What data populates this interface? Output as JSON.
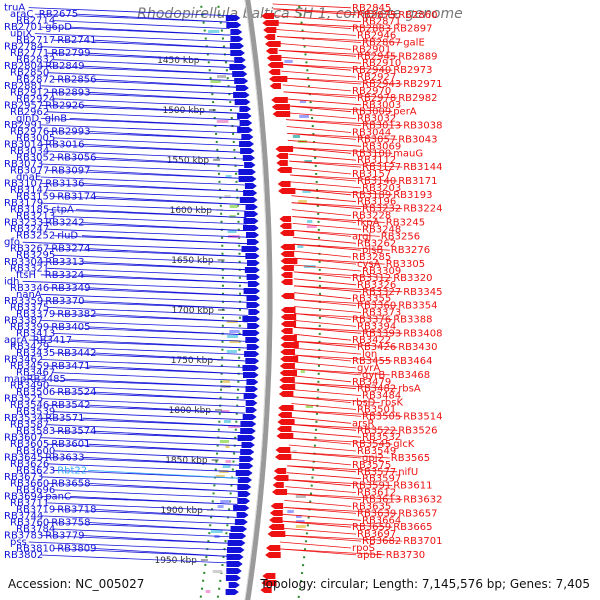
{
  "title": "Rhodopirellula baltica SH 1, complete genome",
  "footer": {
    "accession": "Accession: NC_005027",
    "summary": "Topology: circular; Length: 7,145,576 bp; Genes: 7,405"
  },
  "colors": {
    "forward_strand": "#1212d8",
    "reverse_strand": "#ee1111",
    "backbone": "#9a9a9a",
    "rna_label": "#33aaff",
    "tick": "#444444",
    "dots": "#2a8a2a"
  },
  "ruler_ticks": [
    "1450 kbp",
    "1500 kbp",
    "1550 kbp",
    "1600 kbp",
    "1650 kbp",
    "1700 kbp",
    "1750 kbp",
    "1800 kbp",
    "1850 kbp",
    "1900 kbp",
    "1950 kbp"
  ],
  "left_labels": [
    {
      "t": "truA"
    },
    {
      "t": "araC"
    },
    {
      "t": "RB2675"
    },
    {
      "t": "RB2714"
    },
    {
      "t": "RB2701"
    },
    {
      "t": "g6pD"
    },
    {
      "t": "ubiX"
    },
    {
      "t": "RB2717"
    },
    {
      "t": "RB2741"
    },
    {
      "t": "RB2784"
    },
    {
      "t": "RB2771"
    },
    {
      "t": "RB2799"
    },
    {
      "t": "RB2832"
    },
    {
      "t": "RB2804"
    },
    {
      "t": "RB2849"
    },
    {
      "t": "RB2850"
    },
    {
      "t": "RB2872"
    },
    {
      "t": "RB2856"
    },
    {
      "t": "RB2881"
    },
    {
      "t": "RB2912"
    },
    {
      "t": "RB2893"
    },
    {
      "t": "RB2924"
    },
    {
      "t": "RB2957"
    },
    {
      "t": "RB2926"
    },
    {
      "t": "RB2962"
    },
    {
      "t": "glnD"
    },
    {
      "t": "glnB"
    },
    {
      "t": "RB2991"
    },
    {
      "t": "RB2976"
    },
    {
      "t": "RB2993"
    },
    {
      "t": "RB3005"
    },
    {
      "t": "RB3014"
    },
    {
      "t": "RB3016"
    },
    {
      "t": "RB3034"
    },
    {
      "t": "RB3052"
    },
    {
      "t": "RB3056"
    },
    {
      "t": "RB3073"
    },
    {
      "t": "RB3077"
    },
    {
      "t": "RB3097"
    },
    {
      "t": "dnaE"
    },
    {
      "t": "RB3107"
    },
    {
      "t": "RB3136"
    },
    {
      "t": "RB3147"
    },
    {
      "t": "RB3159"
    },
    {
      "t": "RB3174"
    },
    {
      "t": "RB3179"
    },
    {
      "t": "RB3185"
    },
    {
      "t": "ctpA"
    },
    {
      "t": "RB3213"
    },
    {
      "t": "RB3233"
    },
    {
      "t": "RB3242"
    },
    {
      "t": "RB3247"
    },
    {
      "t": "RB3252"
    },
    {
      "t": "rluD"
    },
    {
      "t": "gfo"
    },
    {
      "t": "RB3267"
    },
    {
      "t": "RB3274"
    },
    {
      "t": "RB3295"
    },
    {
      "t": "RB3304"
    },
    {
      "t": "RB3313"
    },
    {
      "t": "RB3321"
    },
    {
      "t": "ftsH"
    },
    {
      "t": "RB3324"
    },
    {
      "t": "idh"
    },
    {
      "t": "RB3346"
    },
    {
      "t": "RB3349"
    },
    {
      "t": "nanA"
    },
    {
      "t": "RB3359"
    },
    {
      "t": "RB3370"
    },
    {
      "t": "RB3375"
    },
    {
      "t": "RB3379"
    },
    {
      "t": "RB3382"
    },
    {
      "t": "RB3387"
    },
    {
      "t": "RB3399"
    },
    {
      "t": "RB3405"
    },
    {
      "t": "RB3413"
    },
    {
      "t": "agrA"
    },
    {
      "t": "RB3417"
    },
    {
      "t": "RB3429"
    },
    {
      "t": "RB3435"
    },
    {
      "t": "RB3442"
    },
    {
      "t": "RB3462"
    },
    {
      "t": "RB3459"
    },
    {
      "t": "RB3471"
    },
    {
      "t": "RB3467"
    },
    {
      "t": "map"
    },
    {
      "t": "RB3485"
    },
    {
      "t": "RB3490"
    },
    {
      "t": "RB3506"
    },
    {
      "t": "RB3524"
    },
    {
      "t": "RB3525"
    },
    {
      "t": "RB3546"
    },
    {
      "t": "RB3542"
    },
    {
      "t": "RB3539"
    },
    {
      "t": "RB3534"
    },
    {
      "t": "RB3571"
    },
    {
      "t": "RB3587"
    },
    {
      "t": "RB3583"
    },
    {
      "t": "RB3574"
    },
    {
      "t": "RB3607"
    },
    {
      "t": "RB3605"
    },
    {
      "t": "RB3601"
    },
    {
      "t": "RB3600"
    },
    {
      "t": "RB3645"
    },
    {
      "t": "RB3633"
    },
    {
      "t": "RB3626"
    },
    {
      "t": "RB3623"
    },
    {
      "t": "Rbt22",
      "rna": true
    },
    {
      "t": "RB3673"
    },
    {
      "t": "RB3660"
    },
    {
      "t": "RB3658"
    },
    {
      "t": "RB3696"
    },
    {
      "t": "RB3694"
    },
    {
      "t": "panC"
    },
    {
      "t": "RB3711"
    },
    {
      "t": "RB3719"
    },
    {
      "t": "RB3718"
    },
    {
      "t": "RB3744"
    },
    {
      "t": "RB3760"
    },
    {
      "t": "RB3758"
    },
    {
      "t": "RB3784"
    },
    {
      "t": "RB3783"
    },
    {
      "t": "RB3779"
    },
    {
      "t": "pss"
    },
    {
      "t": "RB3810"
    },
    {
      "t": "RB3809"
    },
    {
      "t": "RB3802"
    }
  ],
  "right_labels": [
    {
      "t": "RB2845"
    },
    {
      "t": "RB2875"
    },
    {
      "t": "RB2860"
    },
    {
      "t": "RB2871"
    },
    {
      "t": "RB2883"
    },
    {
      "t": "RB2897"
    },
    {
      "t": "RB2946"
    },
    {
      "t": "RB2867"
    },
    {
      "t": "galE"
    },
    {
      "t": "RB2901"
    },
    {
      "t": "RB2945"
    },
    {
      "t": "RB2889"
    },
    {
      "t": "RB2910"
    },
    {
      "t": "RB2940"
    },
    {
      "t": "RB2973"
    },
    {
      "t": "RB2927"
    },
    {
      "t": "RB2943"
    },
    {
      "t": "RB2971"
    },
    {
      "t": "RB2970"
    },
    {
      "t": "RB2978"
    },
    {
      "t": "RB2982"
    },
    {
      "t": "RB3003"
    },
    {
      "t": "RB3009"
    },
    {
      "t": "perA"
    },
    {
      "t": "RB3032"
    },
    {
      "t": "RB3013"
    },
    {
      "t": "RB3038"
    },
    {
      "t": "RB3044"
    },
    {
      "t": "RB3057"
    },
    {
      "t": "RB3043"
    },
    {
      "t": "RB3069"
    },
    {
      "t": "RB3100"
    },
    {
      "t": "mauG"
    },
    {
      "t": "RB3112"
    },
    {
      "t": "RB3127"
    },
    {
      "t": "RB3144"
    },
    {
      "t": "RB3157"
    },
    {
      "t": "RB3140"
    },
    {
      "t": "RB3171"
    },
    {
      "t": "RB3203"
    },
    {
      "t": "RB3189"
    },
    {
      "t": "RB3193"
    },
    {
      "t": "RB3196"
    },
    {
      "t": "RB3232"
    },
    {
      "t": "RB3224"
    },
    {
      "t": "RB3228"
    },
    {
      "t": "fkpA"
    },
    {
      "t": "RB3245"
    },
    {
      "t": "RB3248"
    },
    {
      "t": "argJ"
    },
    {
      "t": "RB3256"
    },
    {
      "t": "RB3262"
    },
    {
      "t": "plsB"
    },
    {
      "t": "RB3276"
    },
    {
      "t": "RB3285"
    },
    {
      "t": "cysA"
    },
    {
      "t": "RB3305"
    },
    {
      "t": "RB3309"
    },
    {
      "t": "RB3312"
    },
    {
      "t": "RB3320"
    },
    {
      "t": "RB3326"
    },
    {
      "t": "RB3327"
    },
    {
      "t": "RB3345"
    },
    {
      "t": "RB3355"
    },
    {
      "t": "RB3360"
    },
    {
      "t": "RB3354"
    },
    {
      "t": "RB3373"
    },
    {
      "t": "RB3376"
    },
    {
      "t": "RB3388"
    },
    {
      "t": "RB3394"
    },
    {
      "t": "RB3393"
    },
    {
      "t": "RB3408"
    },
    {
      "t": "RB3422"
    },
    {
      "t": "RB3426"
    },
    {
      "t": "RB3430"
    },
    {
      "t": "lon"
    },
    {
      "t": "RB3455"
    },
    {
      "t": "RB3464"
    },
    {
      "t": "gyrA"
    },
    {
      "t": "gyrB"
    },
    {
      "t": "RB3468"
    },
    {
      "t": "RB3479"
    },
    {
      "t": "RB3482"
    },
    {
      "t": "rbsA"
    },
    {
      "t": "RB3484"
    },
    {
      "t": "rbsD"
    },
    {
      "t": "rbsK"
    },
    {
      "t": "RB3501"
    },
    {
      "t": "RB3505"
    },
    {
      "t": "RB3514"
    },
    {
      "t": "arsR"
    },
    {
      "t": "RB3522"
    },
    {
      "t": "RB3526"
    },
    {
      "t": "RB3532"
    },
    {
      "t": "RB3545"
    },
    {
      "t": "glcK"
    },
    {
      "t": "RB3549"
    },
    {
      "t": "gpi2"
    },
    {
      "t": "RB3565"
    },
    {
      "t": "RB3575"
    },
    {
      "t": "RB3577"
    },
    {
      "t": "nifU"
    },
    {
      "t": "RB3597"
    },
    {
      "t": "RB3591"
    },
    {
      "t": "RB3611"
    },
    {
      "t": "RB3612"
    },
    {
      "t": "RB3613"
    },
    {
      "t": "RB3632"
    },
    {
      "t": "RB3635"
    },
    {
      "t": "RB3639"
    },
    {
      "t": "RB3657"
    },
    {
      "t": "RB3664"
    },
    {
      "t": "RB3659"
    },
    {
      "t": "RB3665"
    },
    {
      "t": "RB3697"
    },
    {
      "t": "RB3682"
    },
    {
      "t": "RB3701"
    },
    {
      "t": "rpoS"
    },
    {
      "t": "apbE"
    },
    {
      "t": "RB3730"
    }
  ]
}
